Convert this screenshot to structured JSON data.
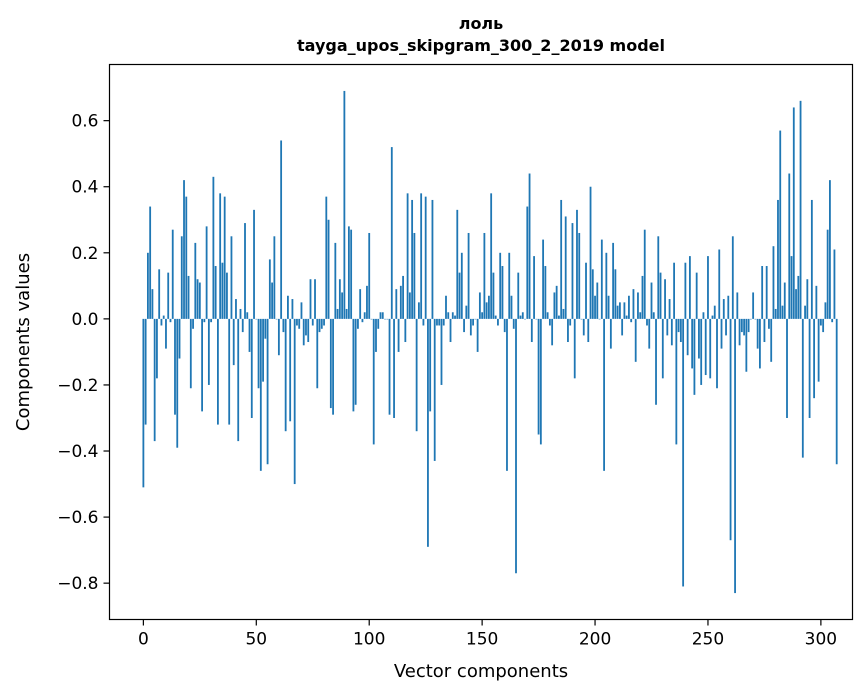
{
  "chart_data": {
    "type": "bar",
    "title": "лоль",
    "subtitle": "tayga_upos_skipgram_300_2_2019 model",
    "xlabel": "Vector components",
    "ylabel": "Components values",
    "xlim": [
      -15,
      314
    ],
    "ylim": [
      -0.91,
      0.77
    ],
    "xticks": [
      0,
      50,
      100,
      150,
      200,
      250,
      300
    ],
    "xtick_labels": [
      "0",
      "50",
      "100",
      "150",
      "200",
      "250",
      "300"
    ],
    "yticks": [
      -0.8,
      -0.6,
      -0.4,
      -0.2,
      0.0,
      0.2,
      0.4,
      0.6
    ],
    "ytick_labels": [
      "−0.8",
      "−0.6",
      "−0.4",
      "−0.2",
      "0.0",
      "0.2",
      "0.4",
      "0.6"
    ],
    "bar_color": "#1f77b4",
    "series": [
      {
        "name": "лоль",
        "values": [
          -0.51,
          -0.32,
          0.2,
          0.34,
          0.09,
          -0.37,
          -0.18,
          0.15,
          -0.02,
          0.01,
          -0.09,
          0.14,
          -0.01,
          0.27,
          -0.29,
          -0.39,
          -0.12,
          0.25,
          0.42,
          0.37,
          0.13,
          -0.21,
          -0.03,
          0.23,
          0.12,
          0.11,
          -0.28,
          -0.01,
          0.28,
          -0.2,
          -0.01,
          0.43,
          0.16,
          -0.32,
          0.38,
          0.17,
          0.37,
          0.14,
          -0.32,
          0.25,
          -0.14,
          0.06,
          -0.37,
          0.03,
          -0.04,
          0.29,
          0.02,
          -0.1,
          -0.3,
          0.33,
          0.0,
          -0.21,
          -0.46,
          -0.19,
          -0.06,
          -0.44,
          0.18,
          0.11,
          0.25,
          0.0,
          -0.11,
          0.54,
          -0.04,
          -0.34,
          0.07,
          -0.31,
          0.06,
          -0.5,
          -0.02,
          -0.03,
          0.05,
          -0.08,
          -0.05,
          -0.07,
          0.12,
          -0.02,
          0.12,
          -0.21,
          -0.04,
          -0.03,
          -0.02,
          0.37,
          0.3,
          -0.27,
          -0.29,
          0.23,
          0.03,
          0.12,
          0.08,
          0.69,
          0.03,
          0.28,
          0.27,
          -0.28,
          -0.26,
          -0.03,
          0.09,
          -0.01,
          0.02,
          0.1,
          0.26,
          0.0,
          -0.38,
          -0.1,
          -0.03,
          0.02,
          0.02,
          0.0,
          0.0,
          -0.29,
          0.52,
          -0.3,
          0.09,
          -0.1,
          0.1,
          0.13,
          -0.07,
          0.38,
          0.08,
          0.36,
          0.26,
          -0.34,
          0.05,
          0.38,
          -0.02,
          0.37,
          -0.69,
          -0.28,
          0.36,
          -0.43,
          -0.02,
          -0.02,
          -0.2,
          -0.02,
          0.07,
          0.02,
          -0.07,
          0.02,
          0.01,
          0.33,
          0.14,
          0.2,
          -0.04,
          0.04,
          0.26,
          -0.05,
          -0.02,
          0.0,
          -0.1,
          0.08,
          0.02,
          0.26,
          0.05,
          0.07,
          0.38,
          0.14,
          0.01,
          -0.02,
          0.2,
          0.16,
          -0.04,
          -0.46,
          0.2,
          0.07,
          -0.03,
          -0.77,
          0.14,
          0.01,
          0.02,
          0.0,
          0.34,
          0.44,
          -0.07,
          0.19,
          0.0,
          -0.35,
          -0.38,
          0.24,
          0.16,
          0.02,
          -0.02,
          -0.08,
          0.08,
          0.1,
          0.01,
          0.36,
          0.03,
          0.31,
          -0.07,
          -0.02,
          0.29,
          -0.18,
          0.33,
          0.26,
          0.0,
          -0.05,
          0.17,
          -0.07,
          0.4,
          0.15,
          0.07,
          0.11,
          0.0,
          0.24,
          -0.46,
          0.2,
          0.07,
          -0.09,
          0.23,
          0.15,
          0.04,
          0.05,
          -0.05,
          0.05,
          0.01,
          0.07,
          -0.01,
          0.09,
          -0.13,
          0.08,
          0.02,
          0.13,
          0.27,
          -0.02,
          -0.09,
          0.11,
          0.02,
          -0.26,
          0.25,
          0.14,
          -0.18,
          0.12,
          -0.05,
          0.06,
          -0.08,
          0.17,
          -0.38,
          -0.04,
          -0.07,
          -0.81,
          0.17,
          -0.11,
          0.19,
          -0.15,
          -0.23,
          0.14,
          -0.12,
          -0.2,
          0.02,
          -0.17,
          0.19,
          -0.18,
          0.01,
          0.04,
          -0.21,
          0.21,
          -0.09,
          0.06,
          -0.05,
          0.07,
          -0.67,
          0.25,
          -0.83,
          0.08,
          -0.08,
          -0.04,
          -0.05,
          -0.16,
          -0.04,
          0.0,
          0.08,
          0.0,
          -0.09,
          -0.15,
          0.16,
          -0.07,
          0.16,
          -0.03,
          -0.13,
          0.22,
          0.03,
          0.36,
          0.57,
          0.04,
          0.11,
          -0.3,
          0.44,
          0.19,
          0.64,
          0.09,
          0.13,
          0.66,
          -0.42,
          0.04,
          0.12,
          -0.3,
          0.36,
          -0.24,
          0.1,
          -0.19,
          -0.02,
          -0.04,
          0.05,
          0.27,
          0.42,
          -0.01,
          0.21,
          -0.44
        ]
      }
    ]
  }
}
